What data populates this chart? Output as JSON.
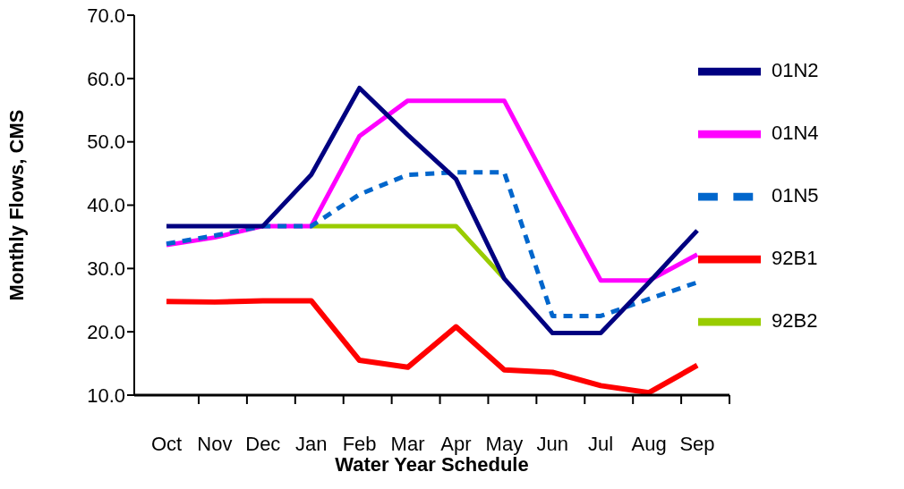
{
  "chart_data": {
    "type": "line",
    "xlabel": "Water Year Schedule",
    "ylabel": "Monthly Flows, CMS",
    "categories": [
      "Oct",
      "Nov",
      "Dec",
      "Jan",
      "Feb",
      "Mar",
      "Apr",
      "May",
      "Jun",
      "Jul",
      "Aug",
      "Sep"
    ],
    "series": [
      {
        "name": "92B1",
        "color": "#ff0000",
        "values": [
          24.8,
          24.7,
          24.9,
          24.9,
          15.5,
          14.4,
          20.8,
          14.0,
          13.6,
          11.5,
          10.4,
          14.7
        ]
      },
      {
        "name": "92B2",
        "color": "#99cc00",
        "values": [
          null,
          null,
          null,
          36.7,
          36.7,
          36.7,
          36.7,
          28.4,
          null,
          null,
          null,
          null
        ]
      },
      {
        "name": "01N4",
        "color": "#ff00ff",
        "values": [
          33.7,
          34.9,
          36.7,
          36.7,
          50.9,
          56.5,
          56.5,
          56.5,
          42.1,
          28.1,
          28.1,
          32.2
        ]
      },
      {
        "name": "01N5",
        "color": "#0066cc",
        "line_style": "dashed",
        "values": [
          33.9,
          35.2,
          36.7,
          36.7,
          41.7,
          44.8,
          45.2,
          45.2,
          22.5,
          22.5,
          25.2,
          27.8
        ]
      },
      {
        "name": "01N2",
        "color": "#000080",
        "values": [
          36.7,
          36.7,
          36.7,
          44.8,
          58.5,
          51.1,
          44.1,
          28.4,
          19.8,
          19.8,
          27.8,
          36.0
        ]
      }
    ],
    "ylim": [
      10,
      70
    ],
    "yticks": [
      {
        "value": 10,
        "label": "10.0"
      },
      {
        "value": 20,
        "label": "20.0"
      },
      {
        "value": 30,
        "label": "30.0"
      },
      {
        "value": 40,
        "label": "40.0"
      },
      {
        "value": 50,
        "label": "50.0"
      },
      {
        "value": 60,
        "label": "60.0"
      },
      {
        "value": 70,
        "label": "70.0"
      }
    ],
    "grid": false,
    "legend": "top right",
    "marker": "none",
    "line_style": "solid"
  }
}
